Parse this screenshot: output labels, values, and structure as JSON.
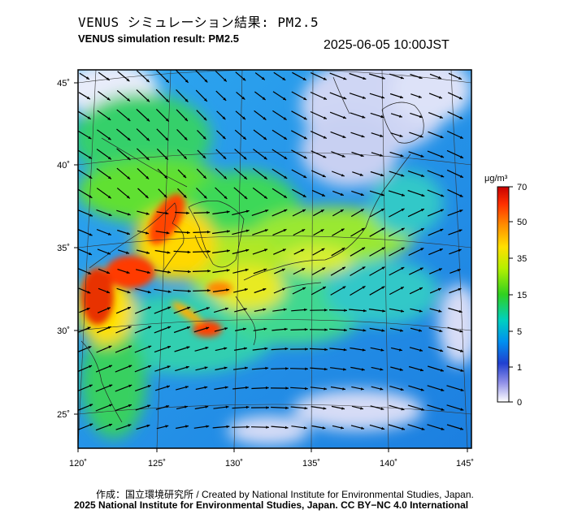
{
  "header": {
    "title_jp": "VENUS シミュレーション結果: PM2.5",
    "title_en": "VENUS simulation result: PM2.5",
    "timestamp": "2025-06-05 10:00JST"
  },
  "map": {
    "extent": {
      "lon": [
        120,
        145
      ],
      "lat": [
        23,
        46
      ]
    },
    "lon_ticks": [
      "120˚",
      "125˚",
      "130˚",
      "135˚",
      "140˚",
      "145˚"
    ],
    "lat_ticks": [
      "45˚",
      "40˚",
      "35˚",
      "30˚",
      "25˚"
    ]
  },
  "colorbar": {
    "unit": "μg/m³",
    "tick_labels": [
      "70",
      "50",
      "35",
      "15",
      "5",
      "1",
      "0"
    ],
    "colors": [
      "#c80000",
      "#ff3000",
      "#ff9000",
      "#ffe000",
      "#b4f000",
      "#30d020",
      "#00d0c0",
      "#0090f0",
      "#2040d0",
      "#9090e8",
      "#ffffff"
    ]
  },
  "footer": {
    "credit_line_1": "作成：国立環境研究所 / Created by National Institute for Environmental Studies, Japan.",
    "credit_line_2": "2025 National Institute for Environmental Studies, Japan. CC BY−NC 4.0 International"
  }
}
